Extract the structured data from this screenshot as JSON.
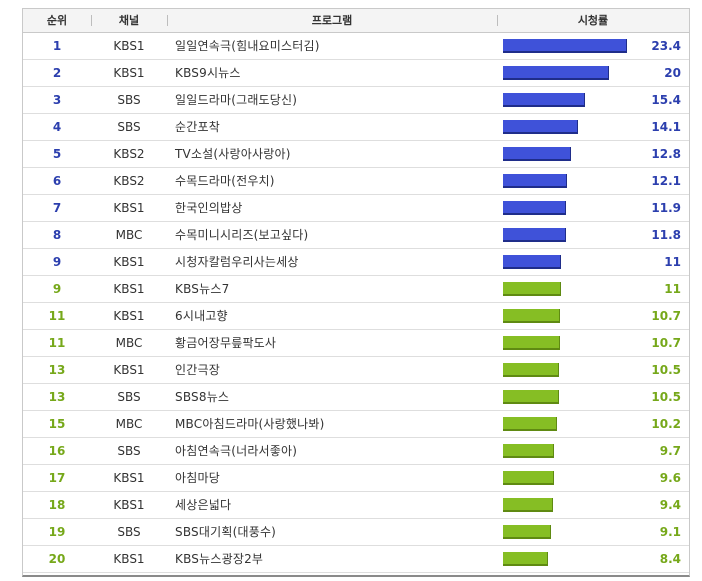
{
  "table": {
    "headers": {
      "rank": "순위",
      "channel": "채널",
      "program": "프로그램",
      "rating": "시청률"
    }
  },
  "colors": {
    "top_rank": "#2c3fae",
    "top_bar": "#3f52d9",
    "rest_rank": "#76a81a",
    "rest_bar": "#86be24"
  },
  "chart_data": {
    "type": "bar",
    "categories": [
      "일일연속극(힘내요미스터김)",
      "KBS9시뉴스",
      "일일드라마(그래도당신)",
      "순간포착",
      "TV소설(사랑아사랑아)",
      "수목드라마(전우치)",
      "한국인의밥상",
      "수목미니시리즈(보고싶다)",
      "시청자칼럼우리사는세상",
      "KBS뉴스7",
      "6시내고향",
      "황금어장무릎팍도사",
      "인간극장",
      "SBS8뉴스",
      "MBC아침드라마(사랑했나봐)",
      "아침연속극(너라서좋아)",
      "아침마당",
      "세상은넓다",
      "SBS대기획(대풍수)",
      "KBS뉴스광장2부"
    ],
    "values": [
      23.4,
      20,
      15.4,
      14.1,
      12.8,
      12.1,
      11.9,
      11.8,
      11,
      11,
      10.7,
      10.7,
      10.5,
      10.5,
      10.2,
      9.7,
      9.6,
      9.4,
      9.1,
      8.4
    ],
    "rows": [
      {
        "rank": "1",
        "channel": "KBS1",
        "program": "일일연속극(힘내요미스터김)",
        "value": 23.4,
        "label": "23.4"
      },
      {
        "rank": "2",
        "channel": "KBS1",
        "program": "KBS9시뉴스",
        "value": 20,
        "label": "20"
      },
      {
        "rank": "3",
        "channel": "SBS",
        "program": "일일드라마(그래도당신)",
        "value": 15.4,
        "label": "15.4"
      },
      {
        "rank": "4",
        "channel": "SBS",
        "program": "순간포착",
        "value": 14.1,
        "label": "14.1"
      },
      {
        "rank": "5",
        "channel": "KBS2",
        "program": "TV소설(사랑아사랑아)",
        "value": 12.8,
        "label": "12.8"
      },
      {
        "rank": "6",
        "channel": "KBS2",
        "program": "수목드라마(전우치)",
        "value": 12.1,
        "label": "12.1"
      },
      {
        "rank": "7",
        "channel": "KBS1",
        "program": "한국인의밥상",
        "value": 11.9,
        "label": "11.9"
      },
      {
        "rank": "8",
        "channel": "MBC",
        "program": "수목미니시리즈(보고싶다)",
        "value": 11.8,
        "label": "11.8"
      },
      {
        "rank": "9",
        "channel": "KBS1",
        "program": "시청자칼럼우리사는세상",
        "value": 11,
        "label": "11"
      },
      {
        "rank": "9",
        "channel": "KBS1",
        "program": "KBS뉴스7",
        "value": 11,
        "label": "11"
      },
      {
        "rank": "11",
        "channel": "KBS1",
        "program": "6시내고향",
        "value": 10.7,
        "label": "10.7"
      },
      {
        "rank": "11",
        "channel": "MBC",
        "program": "황금어장무릎팍도사",
        "value": 10.7,
        "label": "10.7"
      },
      {
        "rank": "13",
        "channel": "KBS1",
        "program": "인간극장",
        "value": 10.5,
        "label": "10.5"
      },
      {
        "rank": "13",
        "channel": "SBS",
        "program": "SBS8뉴스",
        "value": 10.5,
        "label": "10.5"
      },
      {
        "rank": "15",
        "channel": "MBC",
        "program": "MBC아침드라마(사랑했나봐)",
        "value": 10.2,
        "label": "10.2"
      },
      {
        "rank": "16",
        "channel": "SBS",
        "program": "아침연속극(너라서좋아)",
        "value": 9.7,
        "label": "9.7"
      },
      {
        "rank": "17",
        "channel": "KBS1",
        "program": "아침마당",
        "value": 9.6,
        "label": "9.6"
      },
      {
        "rank": "18",
        "channel": "KBS1",
        "program": "세상은넓다",
        "value": 9.4,
        "label": "9.4"
      },
      {
        "rank": "19",
        "channel": "SBS",
        "program": "SBS대기획(대풍수)",
        "value": 9.1,
        "label": "9.1"
      },
      {
        "rank": "20",
        "channel": "KBS1",
        "program": "KBS뉴스광장2부",
        "value": 8.4,
        "label": "8.4"
      }
    ],
    "highlight_count": 9
  }
}
